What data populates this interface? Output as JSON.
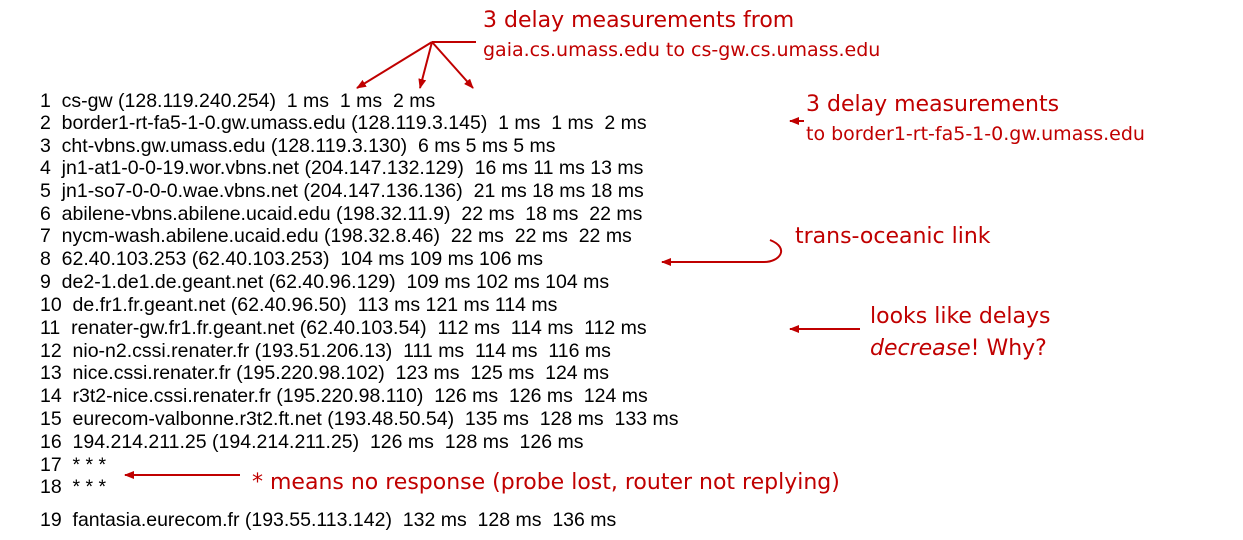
{
  "traceroute": {
    "hops": [
      "1  cs-gw (128.119.240.254)  1 ms  1 ms  2 ms",
      "2  border1-rt-fa5-1-0.gw.umass.edu (128.119.3.145)  1 ms  1 ms  2 ms",
      "3  cht-vbns.gw.umass.edu (128.119.3.130)  6 ms 5 ms 5 ms",
      "4  jn1-at1-0-0-19.wor.vbns.net (204.147.132.129)  16 ms 11 ms 13 ms",
      "5  jn1-so7-0-0-0.wae.vbns.net (204.147.136.136)  21 ms 18 ms 18 ms",
      "6  abilene-vbns.abilene.ucaid.edu (198.32.11.9)  22 ms  18 ms  22 ms",
      "7  nycm-wash.abilene.ucaid.edu (198.32.8.46)  22 ms  22 ms  22 ms",
      "8  62.40.103.253 (62.40.103.253)  104 ms 109 ms 106 ms",
      "9  de2-1.de1.de.geant.net (62.40.96.129)  109 ms 102 ms 104 ms",
      "10  de.fr1.fr.geant.net (62.40.96.50)  113 ms 121 ms 114 ms",
      "11  renater-gw.fr1.fr.geant.net (62.40.103.54)  112 ms  114 ms  112 ms",
      "12  nio-n2.cssi.renater.fr (193.51.206.13)  111 ms  114 ms  116 ms",
      "13  nice.cssi.renater.fr (195.220.98.102)  123 ms  125 ms  124 ms",
      "14  r3t2-nice.cssi.renater.fr (195.220.98.110)  126 ms  126 ms  124 ms",
      "15  eurecom-valbonne.r3t2.ft.net (193.48.50.54)  135 ms  128 ms  133 ms",
      "16  194.214.211.25 (194.214.211.25)  126 ms  128 ms  126 ms",
      "17  * * *",
      "18  * * *",
      "19  fantasia.eurecom.fr (193.55.113.142)  132 ms  128 ms  136 ms"
    ]
  },
  "annotations": {
    "delay_from_title": "3 delay measurements from",
    "delay_from_hosts": "gaia.cs.umass.edu to cs-gw.cs.umass.edu",
    "delay_to_title": "3 delay measurements",
    "delay_to_host": "to border1-rt-fa5-1-0.gw.umass.edu",
    "transoceanic": "trans-oceanic link",
    "decrease_line1": "looks like delays",
    "decrease_word": "decrease",
    "decrease_rest": "! Why?",
    "no_response": "* means no response (probe lost, router not replying)"
  },
  "colors": {
    "annotation": "#c00000",
    "text": "#000000"
  }
}
